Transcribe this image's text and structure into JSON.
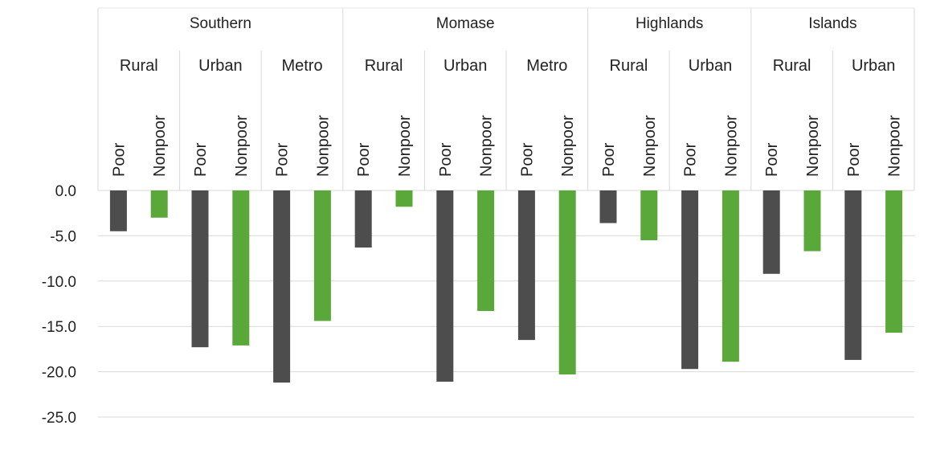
{
  "chart_data": {
    "type": "bar",
    "ylim": [
      -25,
      0
    ],
    "yticks": [
      "0.0",
      "-5.0",
      "-10.0",
      "-15.0",
      "-20.0",
      "-25.0"
    ],
    "grid": true,
    "legend": "none",
    "colors": {
      "poor": "#4d4d4d",
      "nonpoor": "#5aa83a"
    },
    "groups": [
      {
        "region": "Southern",
        "areas": [
          {
            "area": "Rural",
            "poor_label": "Poor",
            "nonpoor_label": "Nonpoor",
            "poor": -4.5,
            "nonpoor": -3.0
          },
          {
            "area": "Urban",
            "poor_label": "Poor",
            "nonpoor_label": "Nonpoor",
            "poor": -17.3,
            "nonpoor": -17.1
          },
          {
            "area": "Metro",
            "poor_label": "Poor",
            "nonpoor_label": "Nonpoor",
            "poor": -21.2,
            "nonpoor": -14.4
          }
        ]
      },
      {
        "region": "Momase",
        "areas": [
          {
            "area": "Rural",
            "poor_label": "Poor",
            "nonpoor_label": "Nonpoor",
            "poor": -6.3,
            "nonpoor": -1.8
          },
          {
            "area": "Urban",
            "poor_label": "Poor",
            "nonpoor_label": "Nonpoor",
            "poor": -21.1,
            "nonpoor": -13.3
          },
          {
            "area": "Metro",
            "poor_label": "Poor",
            "nonpoor_label": "Nonpoor",
            "poor": -16.5,
            "nonpoor": -20.3
          }
        ]
      },
      {
        "region": "Highlands",
        "areas": [
          {
            "area": "Rural",
            "poor_label": "Poor",
            "nonpoor_label": "Nonpoor",
            "poor": -3.6,
            "nonpoor": -5.5
          },
          {
            "area": "Urban",
            "poor_label": "Poor",
            "nonpoor_label": "Nonpoor",
            "poor": -19.7,
            "nonpoor": -18.9
          }
        ]
      },
      {
        "region": "Islands",
        "areas": [
          {
            "area": "Rural",
            "poor_label": "Poor",
            "nonpoor_label": "Nonpoor",
            "poor": -9.2,
            "nonpoor": -6.7
          },
          {
            "area": "Urban",
            "poor_label": "Poor",
            "nonpoor_label": "Nonpoor",
            "poor": -18.7,
            "nonpoor": -15.7
          }
        ]
      }
    ]
  }
}
